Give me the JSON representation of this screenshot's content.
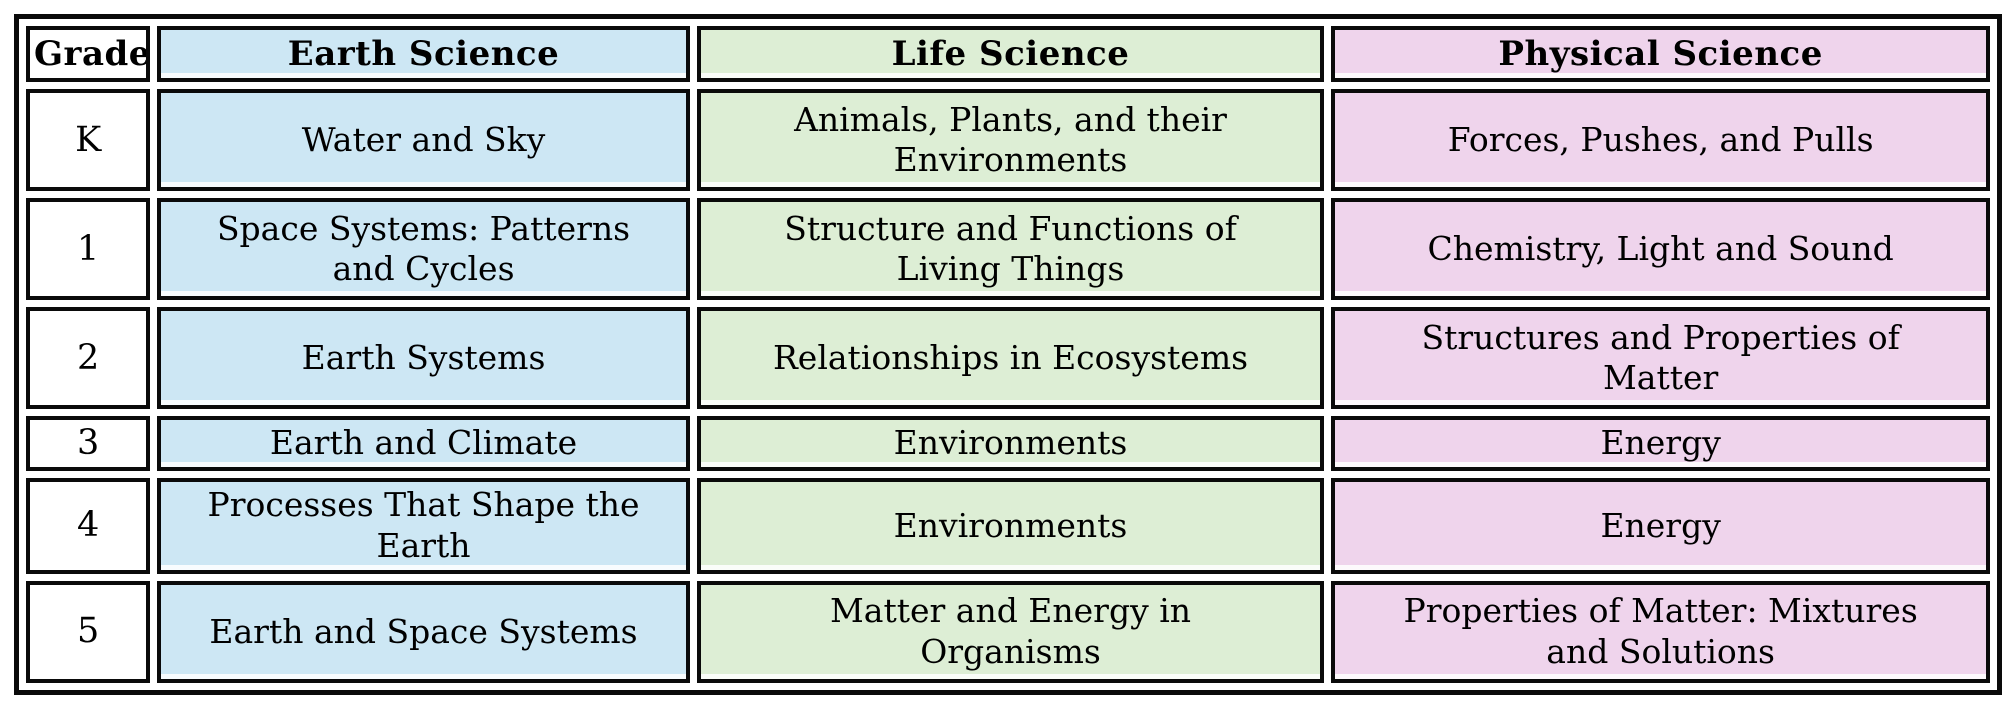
{
  "colors": {
    "earth_science": "#cde7f4",
    "life_science": "#ddeed5",
    "physical_science": "#efd4ec",
    "border": "#0a0a0a",
    "background": "#ffffff"
  },
  "table": {
    "columns": [
      {
        "key": "grade",
        "label": "Grade"
      },
      {
        "key": "earth",
        "label": "Earth Science"
      },
      {
        "key": "life",
        "label": "Life Science"
      },
      {
        "key": "physical",
        "label": "Physical Science"
      }
    ],
    "rows": [
      {
        "grade": "K",
        "earth": "Water and Sky",
        "life": "Animals, Plants, and their\nEnvironments",
        "physical": "Forces, Pushes, and Pulls"
      },
      {
        "grade": "1",
        "earth": "Space Systems: Patterns\nand Cycles",
        "life": "Structure and Functions of\nLiving Things",
        "physical": "Chemistry, Light and Sound"
      },
      {
        "grade": "2",
        "earth": "Earth Systems",
        "life": "Relationships in Ecosystems",
        "physical": "Structures and Properties of\nMatter"
      },
      {
        "grade": "3",
        "earth": "Earth and Climate",
        "life": "Environments",
        "physical": "Energy"
      },
      {
        "grade": "4",
        "earth": "Processes That Shape the\nEarth",
        "life": "Environments",
        "physical": "Energy"
      },
      {
        "grade": "5",
        "earth": "Earth and Space Systems",
        "life": "Matter and Energy in\nOrganisms",
        "physical": "Properties of Matter: Mixtures\nand Solutions"
      }
    ]
  }
}
